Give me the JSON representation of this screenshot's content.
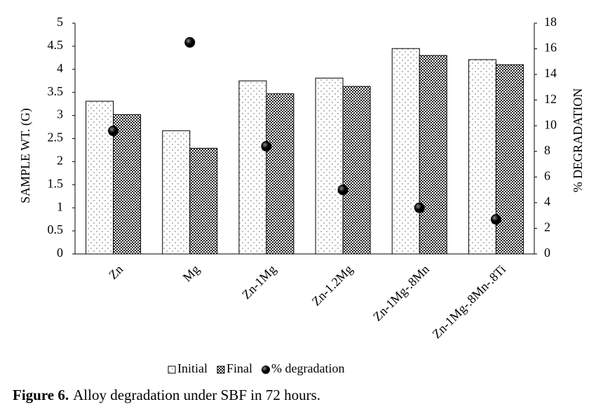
{
  "chart_data": {
    "type": "bar",
    "y_label": "SAMPLE WT. (G)",
    "y2_label": "% DEGRADATION",
    "figure_label": "Figure 6.",
    "caption": "Alloy degradation under SBF in 72 hours.",
    "categories": [
      "Zn",
      "Mg",
      "Zn-1Mg",
      "Zn-1.2Mg",
      "Zn-1Mg-.8Mn",
      "Zn-1Mg-.8Mn-.8Ti"
    ],
    "series": [
      {
        "name": "Initial",
        "type": "bar",
        "color": "#ffffff",
        "values": [
          3.31,
          2.67,
          3.75,
          3.81,
          4.45,
          4.21
        ]
      },
      {
        "name": "Final",
        "type": "bar",
        "color": "#333333",
        "values": [
          3.02,
          2.29,
          3.47,
          3.63,
          4.3,
          4.1
        ]
      },
      {
        "name": "% degradation",
        "type": "scatter",
        "axis": "y2",
        "color": "#000000",
        "values": [
          9.6,
          16.5,
          8.4,
          5.0,
          3.6,
          2.7
        ]
      }
    ],
    "ylim": [
      0,
      5
    ],
    "yticks": [
      0,
      0.5,
      1,
      1.5,
      2,
      2.5,
      3,
      3.5,
      4,
      4.5,
      5
    ],
    "y2lim": [
      0,
      18
    ],
    "y2ticks": [
      0,
      2,
      4,
      6,
      8,
      10,
      12,
      14,
      16,
      18
    ],
    "legend": "bottom"
  }
}
